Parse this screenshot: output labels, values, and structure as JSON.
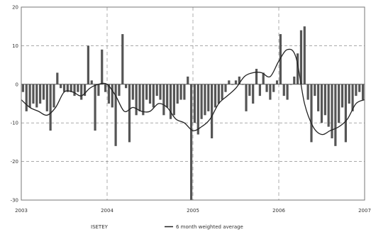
{
  "chart_data": {
    "type": "bar",
    "title": "",
    "xlabel": "",
    "ylabel": "",
    "ylim": [
      -30,
      20
    ],
    "yticks": [
      20,
      10,
      0,
      -10,
      -20,
      -30
    ],
    "xlim": [
      2003,
      2007
    ],
    "xticks": [
      2003,
      2004,
      2005,
      2006,
      2007
    ],
    "grid": true,
    "legend_position": "bottom",
    "colors": {
      "bars": "#555555",
      "line": "#222222",
      "grid": "#777777"
    },
    "series": [
      {
        "name": "ISETEY",
        "kind": "bar",
        "x": [
          2003.02,
          2003.06,
          2003.1,
          2003.14,
          2003.18,
          2003.22,
          2003.26,
          2003.3,
          2003.34,
          2003.38,
          2003.42,
          2003.46,
          2003.5,
          2003.54,
          2003.58,
          2003.62,
          2003.66,
          2003.7,
          2003.74,
          2003.78,
          2003.82,
          2003.86,
          2003.9,
          2003.94,
          2003.98,
          2004.02,
          2004.06,
          2004.1,
          2004.14,
          2004.18,
          2004.22,
          2004.26,
          2004.3,
          2004.34,
          2004.38,
          2004.42,
          2004.46,
          2004.5,
          2004.54,
          2004.58,
          2004.62,
          2004.66,
          2004.7,
          2004.74,
          2004.78,
          2004.82,
          2004.86,
          2004.9,
          2004.94,
          2004.98,
          2005.02,
          2005.06,
          2005.1,
          2005.14,
          2005.18,
          2005.22,
          2005.26,
          2005.3,
          2005.34,
          2005.38,
          2005.42,
          2005.46,
          2005.5,
          2005.54,
          2005.58,
          2005.62,
          2005.66,
          2005.7,
          2005.74,
          2005.78,
          2005.82,
          2005.86,
          2005.9,
          2005.94,
          2005.98,
          2006.02,
          2006.06,
          2006.1,
          2006.14,
          2006.18,
          2006.22,
          2006.26,
          2006.3,
          2006.34,
          2006.38,
          2006.42,
          2006.46,
          2006.5,
          2006.54,
          2006.58,
          2006.62,
          2006.66,
          2006.7,
          2006.74,
          2006.78,
          2006.82,
          2006.86,
          2006.9,
          2006.94,
          2006.98
        ],
        "values": [
          -2,
          -7,
          -6,
          -5,
          -6,
          -5,
          -4,
          -7,
          -12,
          -6,
          3,
          -1,
          -2,
          -2,
          -2,
          -3,
          -2,
          -4,
          -3,
          10,
          1,
          -12,
          -3,
          9,
          -2,
          -5,
          -6,
          -16,
          -3,
          13,
          -1,
          -15,
          -4,
          -8,
          -7,
          -8,
          -4,
          -5,
          -6,
          -3,
          -4,
          -8,
          -6,
          -9,
          -8,
          -5,
          -4,
          -4,
          2,
          -30,
          -10,
          -13,
          -9,
          -8,
          -7,
          -14,
          -6,
          -5,
          -4,
          -2,
          1,
          0,
          1,
          2,
          0,
          -7,
          -3,
          -5,
          4,
          -3,
          3,
          -2,
          -4,
          -2,
          1,
          13,
          -3,
          -4,
          0,
          2,
          8,
          14,
          15,
          -4,
          -15,
          -3,
          -7,
          -10,
          -8,
          -11,
          -14,
          -16,
          -10,
          -6,
          -15,
          -5,
          -7,
          -3,
          -2,
          -4
        ]
      },
      {
        "name": "6 month weighted average",
        "kind": "line",
        "x": [
          2003.0,
          2003.1,
          2003.2,
          2003.3,
          2003.4,
          2003.5,
          2003.6,
          2003.7,
          2003.8,
          2003.9,
          2004.0,
          2004.1,
          2004.2,
          2004.3,
          2004.4,
          2004.5,
          2004.6,
          2004.7,
          2004.8,
          2004.9,
          2005.0,
          2005.1,
          2005.2,
          2005.3,
          2005.4,
          2005.5,
          2005.6,
          2005.7,
          2005.8,
          2005.9,
          2006.0,
          2006.1,
          2006.2,
          2006.3,
          2006.4,
          2006.5,
          2006.6,
          2006.7,
          2006.8,
          2006.9,
          2007.0
        ],
        "values": [
          -4,
          -6,
          -7,
          -8,
          -6,
          -2,
          -2,
          -3,
          -1,
          0,
          0,
          -3,
          -7,
          -6,
          -7,
          -7,
          -5,
          -6,
          -9,
          -10,
          -12,
          -11,
          -9,
          -5,
          -3,
          -1,
          2,
          3,
          3,
          2,
          6,
          9,
          7,
          -5,
          -11,
          -13,
          -12,
          -11,
          -9,
          -5,
          -4
        ]
      }
    ]
  }
}
